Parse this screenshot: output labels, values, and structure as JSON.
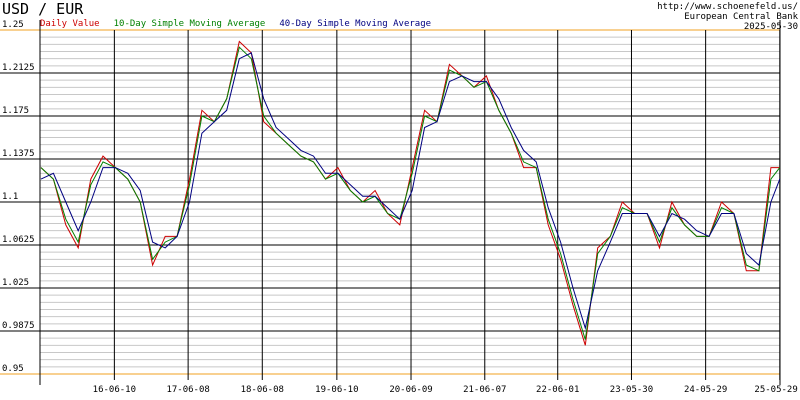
{
  "chart_data": {
    "type": "line",
    "title": "USD / EUR",
    "source_url": "http://www.schoenefeld.us/",
    "source": "European Central Bank",
    "date": "2025-05-30",
    "x": [
      "15-06-15",
      "15-08-15",
      "15-10-15",
      "15-12-15",
      "16-02-15",
      "16-04-15",
      "16-06-15",
      "16-08-15",
      "16-10-15",
      "16-12-15",
      "17-02-15",
      "17-04-15",
      "17-06-15",
      "17-08-15",
      "17-10-15",
      "17-12-15",
      "18-02-15",
      "18-04-15",
      "18-06-15",
      "18-08-15",
      "18-10-15",
      "18-12-15",
      "19-02-15",
      "19-04-15",
      "19-06-15",
      "19-08-15",
      "19-10-15",
      "19-12-15",
      "20-02-15",
      "20-04-15",
      "20-06-15",
      "20-08-15",
      "20-10-15",
      "20-12-15",
      "21-02-15",
      "21-04-15",
      "21-06-15",
      "21-08-15",
      "21-10-15",
      "21-12-15",
      "22-02-15",
      "22-04-15",
      "22-06-15",
      "22-08-15",
      "22-10-15",
      "22-12-15",
      "23-02-15",
      "23-04-15",
      "23-06-15",
      "23-08-15",
      "23-10-15",
      "23-12-15",
      "24-02-15",
      "24-04-15",
      "24-06-15",
      "24-08-15",
      "24-10-15",
      "24-12-15",
      "25-02-15",
      "25-04-15",
      "25-05-29"
    ],
    "series": [
      {
        "name": "Daily Value",
        "color": "#cc0000",
        "values": [
          1.13,
          1.12,
          1.08,
          1.06,
          1.12,
          1.14,
          1.13,
          1.12,
          1.1,
          1.045,
          1.07,
          1.07,
          1.12,
          1.18,
          1.17,
          1.19,
          1.24,
          1.23,
          1.17,
          1.16,
          1.15,
          1.14,
          1.135,
          1.12,
          1.13,
          1.11,
          1.1,
          1.11,
          1.09,
          1.08,
          1.13,
          1.18,
          1.17,
          1.22,
          1.21,
          1.2,
          1.21,
          1.18,
          1.16,
          1.13,
          1.13,
          1.08,
          1.05,
          1.01,
          0.975,
          1.06,
          1.07,
          1.1,
          1.09,
          1.09,
          1.06,
          1.1,
          1.08,
          1.07,
          1.07,
          1.1,
          1.09,
          1.04,
          1.04,
          1.13,
          1.13
        ]
      },
      {
        "name": "10-Day Simple Moving Average",
        "color": "#008000",
        "values": [
          1.13,
          1.12,
          1.085,
          1.065,
          1.115,
          1.135,
          1.13,
          1.12,
          1.1,
          1.05,
          1.065,
          1.07,
          1.115,
          1.175,
          1.17,
          1.19,
          1.235,
          1.225,
          1.175,
          1.16,
          1.15,
          1.14,
          1.135,
          1.12,
          1.125,
          1.11,
          1.1,
          1.105,
          1.09,
          1.085,
          1.125,
          1.175,
          1.17,
          1.215,
          1.21,
          1.2,
          1.205,
          1.18,
          1.16,
          1.135,
          1.13,
          1.085,
          1.055,
          1.015,
          0.98,
          1.055,
          1.07,
          1.095,
          1.09,
          1.09,
          1.065,
          1.095,
          1.08,
          1.07,
          1.07,
          1.095,
          1.09,
          1.045,
          1.04,
          1.12,
          1.13
        ]
      },
      {
        "name": "40-Day Simple Moving Average",
        "color": "#000080",
        "values": [
          1.12,
          1.125,
          1.1,
          1.075,
          1.1,
          1.13,
          1.13,
          1.125,
          1.11,
          1.065,
          1.06,
          1.07,
          1.1,
          1.16,
          1.17,
          1.18,
          1.225,
          1.23,
          1.19,
          1.165,
          1.155,
          1.145,
          1.14,
          1.125,
          1.125,
          1.115,
          1.105,
          1.105,
          1.095,
          1.085,
          1.11,
          1.165,
          1.17,
          1.205,
          1.21,
          1.205,
          1.205,
          1.19,
          1.165,
          1.145,
          1.135,
          1.095,
          1.065,
          1.025,
          0.99,
          1.04,
          1.065,
          1.09,
          1.09,
          1.09,
          1.07,
          1.09,
          1.085,
          1.075,
          1.07,
          1.09,
          1.09,
          1.055,
          1.045,
          1.1,
          1.12
        ]
      }
    ],
    "xlim": [
      "15-06-10",
      "25-05-30"
    ],
    "xticks": [
      "16-06-10",
      "17-06-08",
      "18-06-08",
      "19-06-10",
      "20-06-09",
      "21-06-07",
      "22-06-01",
      "23-05-30",
      "24-05-29",
      "25-05-29"
    ],
    "ylim": [
      0.95,
      1.25
    ],
    "yticks": [
      0.95,
      0.9875,
      1.025,
      1.0625,
      1.1,
      1.1375,
      1.175,
      1.2125,
      1.25
    ],
    "grid": true
  }
}
